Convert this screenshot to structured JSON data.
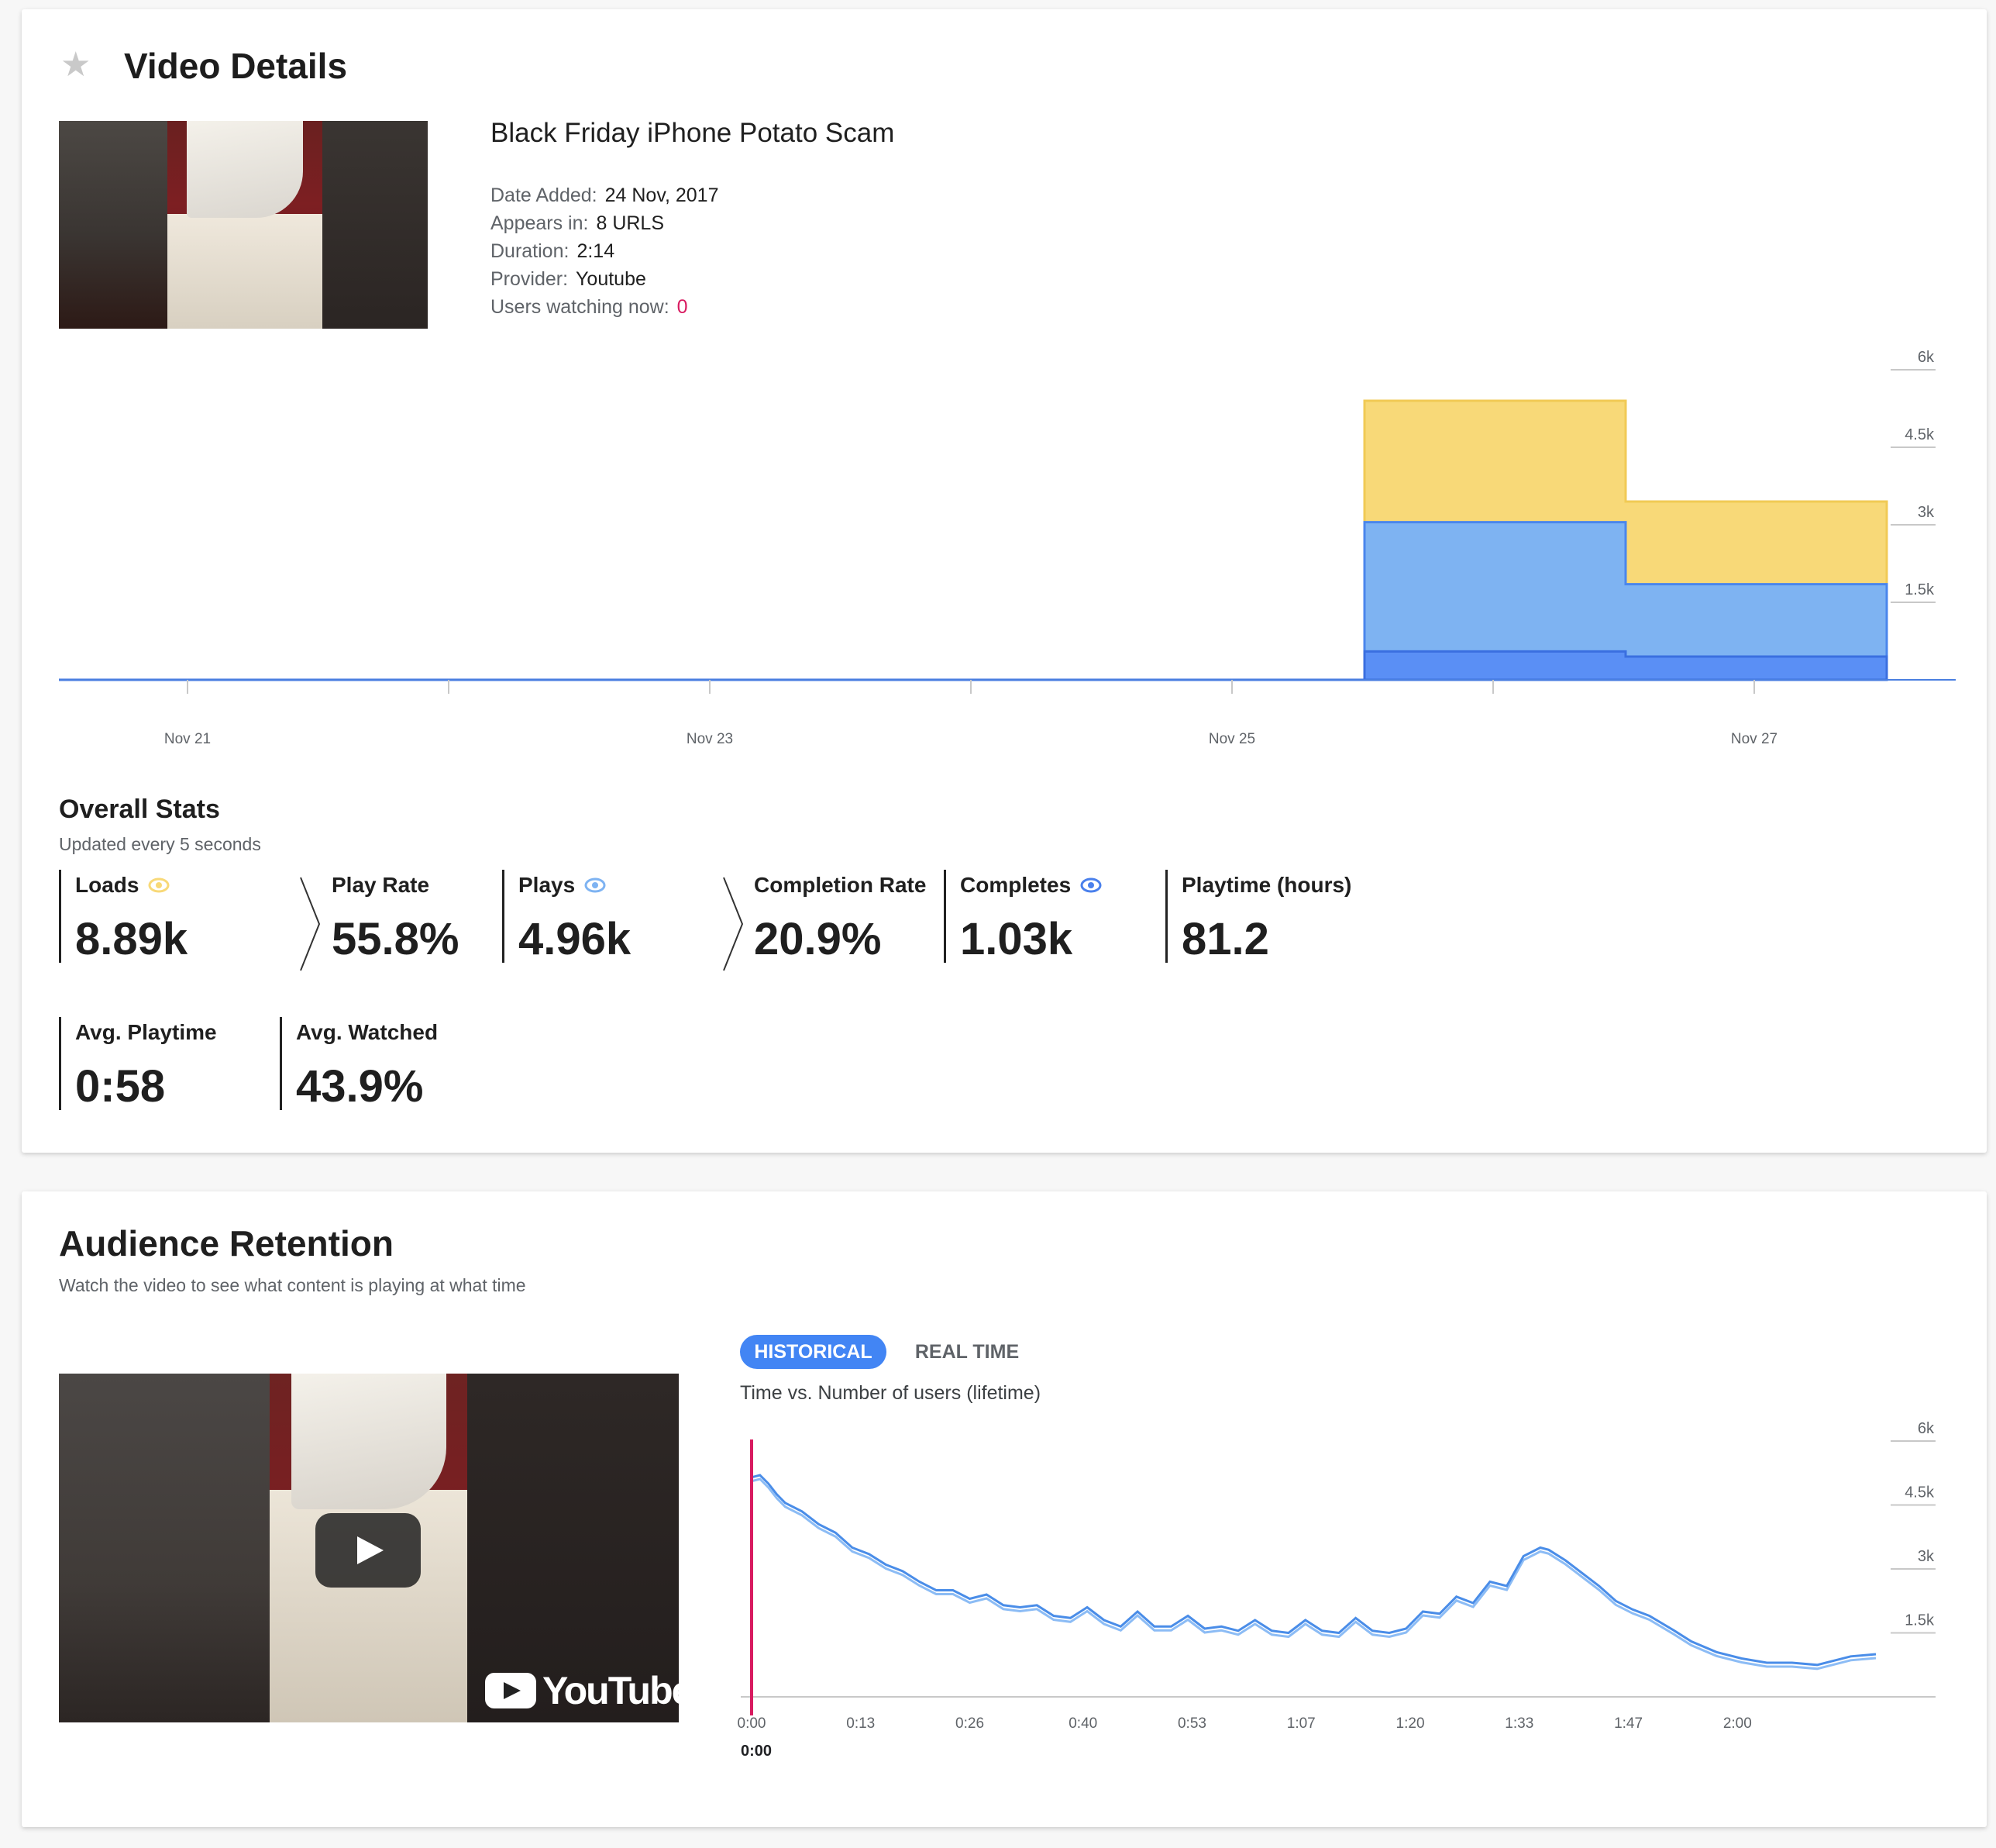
{
  "video_details": {
    "title": "Video Details",
    "star_icon": "star-icon",
    "video_title": "Black Friday iPhone Potato Scam",
    "meta": [
      {
        "label": "Date Added:",
        "value": "24 Nov, 2017"
      },
      {
        "label": "Appears in:",
        "value": "8 URLS"
      },
      {
        "label": "Duration:",
        "value": "2:14"
      },
      {
        "label": "Provider:",
        "value": "Youtube"
      },
      {
        "label": "Users watching now:",
        "value": "0"
      }
    ],
    "colors": {
      "loads": "#f8d978",
      "plays": "#7eb3f2",
      "completes": "#5a8ff5",
      "live": "#d81b60"
    }
  },
  "overall_stats": {
    "title": "Overall Stats",
    "subtitle": "Updated every 5 seconds",
    "items": [
      {
        "label": "Loads",
        "value": "8.89k",
        "icon": "eye-icon"
      },
      {
        "label": "Play Rate",
        "value": "55.8%"
      },
      {
        "label": "Plays",
        "value": "4.96k",
        "icon": "eye-icon"
      },
      {
        "label": "Completion Rate",
        "value": "20.9%"
      },
      {
        "label": "Completes",
        "value": "1.03k",
        "icon": "eye-icon"
      },
      {
        "label": "Playtime (hours)",
        "value": "81.2"
      },
      {
        "label": "Avg. Playtime",
        "value": "0:58"
      },
      {
        "label": "Avg. Watched",
        "value": "43.9%"
      }
    ]
  },
  "audience_retention": {
    "title": "Audience Retention",
    "subtitle": "Watch the video to see what content is playing at what time",
    "player": {
      "brand": "YouTube",
      "play_icon": "play-icon"
    },
    "tabs": [
      {
        "label": "HISTORICAL",
        "active": true
      },
      {
        "label": "REAL TIME",
        "active": false
      }
    ],
    "chart_label": "Time vs. Number of users (lifetime)",
    "cursor_label": "0:00"
  },
  "chart_data": [
    {
      "type": "area",
      "stacked": true,
      "x_ticks": [
        "Nov 21",
        "Nov 23",
        "Nov 25",
        "Nov 27"
      ],
      "y_ticks": [
        "1.5k",
        "3k",
        "4.5k",
        "6k"
      ],
      "ylim": [
        0,
        6000
      ],
      "x": [
        "Nov 21",
        "Nov 22",
        "Nov 23",
        "Nov 24",
        "Nov 25",
        "Nov 26",
        "Nov 27"
      ],
      "series": [
        {
          "values": [
            0,
            0,
            0,
            0,
            0,
            550,
            450
          ]
        },
        {
          "values": [
            0,
            0,
            0,
            0,
            0,
            3050,
            1850
          ]
        },
        {
          "values": [
            0,
            0,
            0,
            0,
            0,
            5400,
            3450
          ]
        }
      ]
    },
    {
      "type": "line",
      "x_ticks": [
        "0:00",
        "0:13",
        "0:26",
        "0:40",
        "0:53",
        "1:07",
        "1:20",
        "1:33",
        "1:47",
        "2:00"
      ],
      "y_ticks": [
        "1.5k",
        "3k",
        "4.5k",
        "6k"
      ],
      "ylim": [
        0,
        6000
      ],
      "xlim": [
        0,
        134
      ],
      "x": [
        0,
        1,
        2,
        3,
        4,
        6,
        8,
        10,
        12,
        14,
        16,
        18,
        20,
        22,
        24,
        26,
        28,
        30,
        32,
        34,
        36,
        38,
        40,
        42,
        44,
        46,
        48,
        50,
        52,
        54,
        56,
        58,
        60,
        62,
        64,
        66,
        68,
        70,
        72,
        74,
        76,
        78,
        80,
        82,
        84,
        86,
        88,
        90,
        92,
        94,
        95,
        97,
        99,
        101,
        103,
        105,
        107,
        110,
        112,
        115,
        118,
        121,
        124,
        127,
        129,
        131,
        134
      ],
      "series": [
        {
          "values": [
            5150,
            5200,
            5000,
            4750,
            4550,
            4350,
            4050,
            3850,
            3500,
            3350,
            3100,
            2950,
            2700,
            2500,
            2500,
            2300,
            2400,
            2150,
            2100,
            2150,
            1900,
            1850,
            2100,
            1800,
            1650,
            2000,
            1650,
            1650,
            1900,
            1600,
            1650,
            1550,
            1800,
            1550,
            1500,
            1800,
            1550,
            1500,
            1850,
            1550,
            1500,
            1600,
            2000,
            1950,
            2350,
            2200,
            2700,
            2600,
            3300,
            3500,
            3450,
            3200,
            2900,
            2600,
            2250,
            2050,
            1900,
            1550,
            1300,
            1050,
            900,
            800,
            800,
            750,
            850,
            950,
            1000
          ]
        }
      ]
    }
  ]
}
